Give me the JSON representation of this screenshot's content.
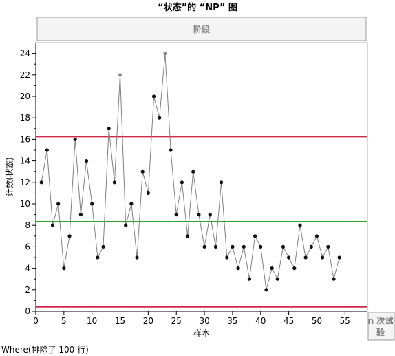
{
  "chart_data": {
    "type": "line",
    "title": "“状态”的 “NP” 图",
    "phase_label": "阶段",
    "xlabel": "样本",
    "ylabel": "计数(状态)",
    "xlim": [
      0,
      59
    ],
    "ylim": [
      0,
      25
    ],
    "xticks": [
      0,
      5,
      10,
      15,
      20,
      25,
      30,
      35,
      40,
      45,
      50,
      55
    ],
    "yticks": [
      0,
      2,
      4,
      6,
      8,
      10,
      12,
      14,
      16,
      18,
      20,
      22,
      24
    ],
    "limits": {
      "ucl": 16.26,
      "center": 8.33,
      "lcl": 0.4
    },
    "colors": {
      "ucl": "#d0284a",
      "lcl": "#d0284a",
      "center": "#27a627",
      "line": "#808080",
      "point": "#111111",
      "excluded_point": "#8c8c8c"
    },
    "series": [
      {
        "x": [
          1,
          2,
          3,
          4,
          5,
          6,
          7,
          8,
          9,
          10,
          11,
          12,
          13,
          14,
          15,
          16,
          17,
          18,
          19,
          20,
          21,
          22,
          23,
          24,
          25,
          26,
          27,
          28,
          29,
          30,
          31,
          32,
          33,
          34,
          35,
          36,
          37,
          38,
          39,
          40,
          41,
          42,
          43,
          44,
          45,
          46,
          47,
          48,
          49,
          50,
          51,
          52,
          53,
          54
        ],
        "values": [
          12,
          15,
          8,
          10,
          4,
          7,
          16,
          9,
          14,
          10,
          5,
          6,
          17,
          12,
          22,
          8,
          10,
          5,
          13,
          11,
          20,
          18,
          24,
          15,
          9,
          12,
          7,
          13,
          9,
          6,
          9,
          6,
          12,
          5,
          6,
          4,
          6,
          3,
          7,
          6,
          2,
          4,
          3,
          6,
          5,
          4,
          8,
          5,
          6,
          7,
          5,
          6,
          3,
          5
        ],
        "excluded_x": [
          15,
          23
        ]
      }
    ]
  },
  "footer": {
    "where_text": "Where(排除了 100 行)",
    "corner_line1": "n 次试",
    "corner_line2": "验"
  }
}
